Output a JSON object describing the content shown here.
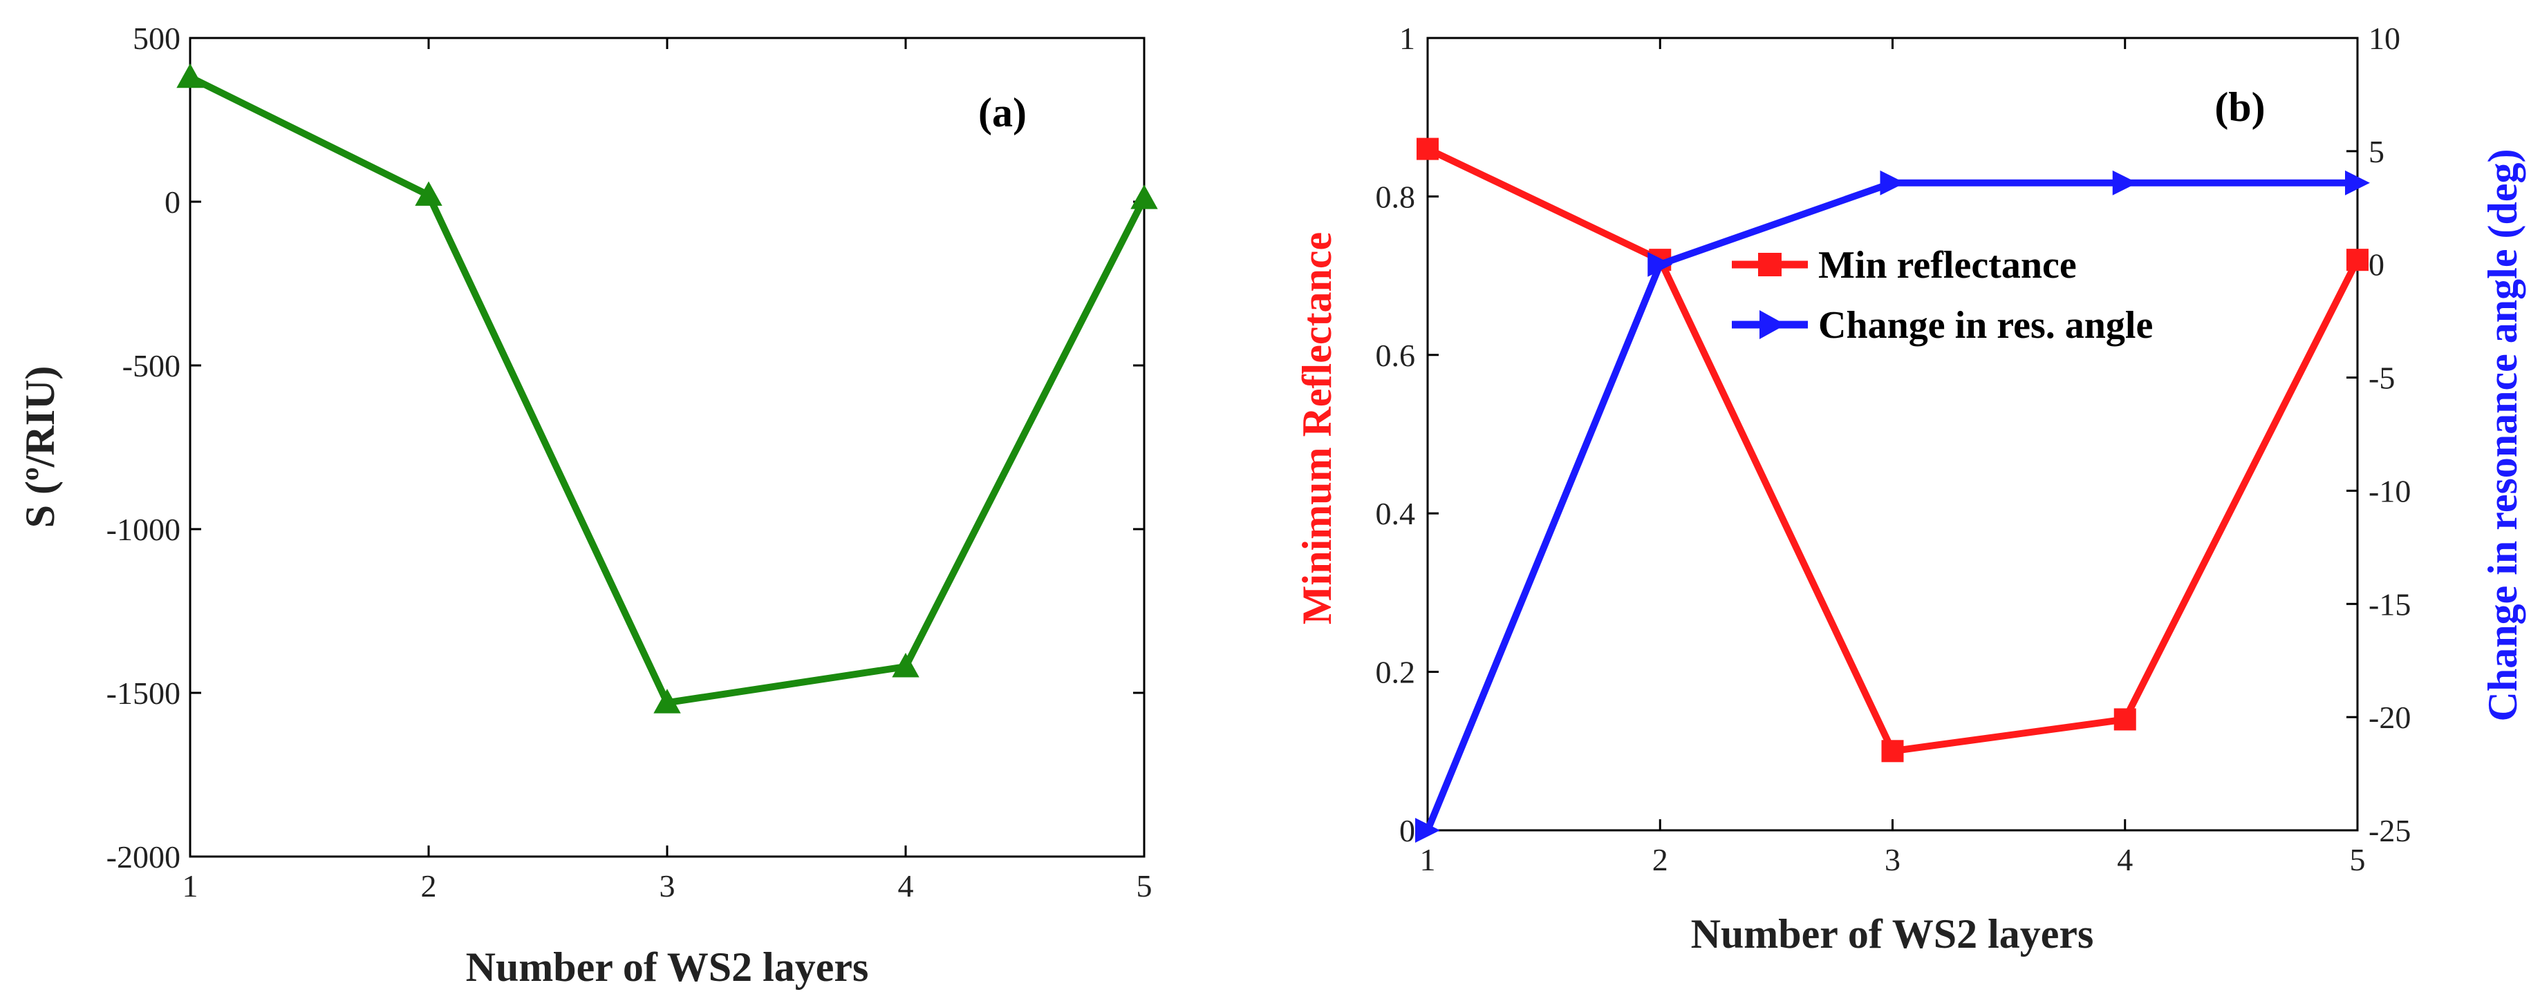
{
  "chart_data": [
    {
      "type": "line",
      "panel_label": "(a)",
      "xlabel": "Number of WS2 layers",
      "ylabel": "S  (º/RIU)",
      "x": [
        1,
        2,
        3,
        4,
        5
      ],
      "xlim": [
        1,
        5
      ],
      "ylim": [
        -2000,
        500
      ],
      "xticks": [
        1,
        2,
        3,
        4,
        5
      ],
      "yticks": [
        -2000,
        -1500,
        -1000,
        -500,
        0,
        500
      ],
      "series": [
        {
          "name": "S",
          "color": "#1a8a0e",
          "marker": "triangle",
          "values": [
            380,
            20,
            -1530,
            -1420,
            10
          ]
        }
      ]
    },
    {
      "type": "line",
      "panel_label": "(b)",
      "xlabel": "Number of WS2 layers",
      "ylabel_left": "Minimum Reflectance",
      "ylabel_right": "Change in resonance angle (deg)",
      "x": [
        1,
        2,
        3,
        4,
        5
      ],
      "xlim": [
        1,
        5
      ],
      "ylim_left": [
        0,
        1
      ],
      "ylim_right": [
        -25,
        10
      ],
      "xticks": [
        1,
        2,
        3,
        4,
        5
      ],
      "yticks_left": [
        "0",
        "0.2",
        "0.4",
        "0.6",
        "0.8",
        "1"
      ],
      "yticks_right": [
        "-25",
        "-20",
        "-15",
        "-10",
        "-5",
        "0",
        "5",
        "10"
      ],
      "legend_position": "upper-center",
      "series": [
        {
          "name": "Min reflectance",
          "axis": "left",
          "color": "#ff1a1a",
          "marker": "square",
          "values": [
            0.86,
            0.72,
            0.1,
            0.14,
            0.72
          ]
        },
        {
          "name": "Change in res. angle",
          "axis": "right",
          "color": "#1a1aff",
          "marker": "triangle-right",
          "values": [
            -25,
            0,
            3.6,
            3.6,
            3.6
          ]
        }
      ]
    }
  ]
}
